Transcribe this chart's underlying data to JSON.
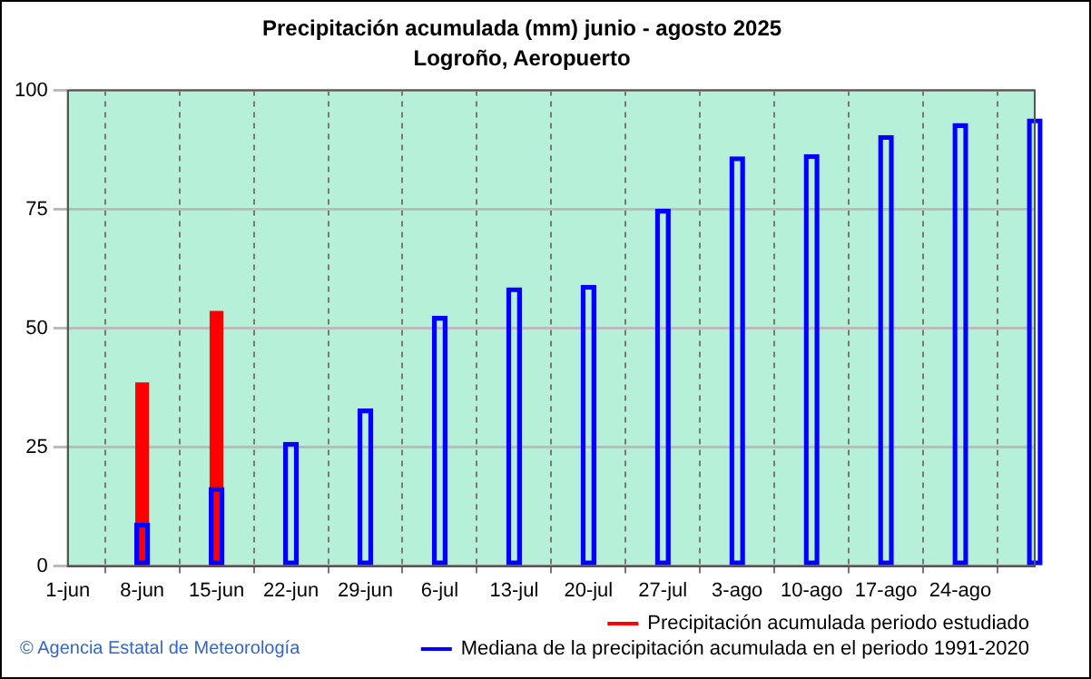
{
  "chart_data": {
    "type": "bar",
    "title": "Precipitación acumulada (mm) junio - agosto 2025",
    "subtitle": "Logroño, Aeropuerto",
    "categories": [
      "1-jun",
      "8-jun",
      "15-jun",
      "22-jun",
      "29-jun",
      "6-jul",
      "13-jul",
      "20-jul",
      "27-jul",
      "3-ago",
      "10-ago",
      "17-ago",
      "24-ago",
      null
    ],
    "series": [
      {
        "name": "Precipitación acumulada periodo estudiado",
        "color": "#ff0000",
        "values": [
          null,
          38.5,
          53.5,
          null,
          null,
          null,
          null,
          null,
          null,
          null,
          null,
          null,
          null,
          null
        ]
      },
      {
        "name": "Mediana de la precipitación acumulada en el periodo 1991-2020",
        "color": "#0000ff",
        "values": [
          null,
          9,
          16.5,
          26,
          33,
          52.5,
          58.5,
          59,
          75,
          86,
          86.5,
          90.5,
          93,
          94
        ]
      }
    ],
    "ylim": [
      0,
      100
    ],
    "yticks": [
      0,
      25,
      50,
      75,
      100
    ],
    "grid": true,
    "legend": "bottom",
    "annotations": [
      "© Agencia Estatal de Meteorología"
    ]
  }
}
